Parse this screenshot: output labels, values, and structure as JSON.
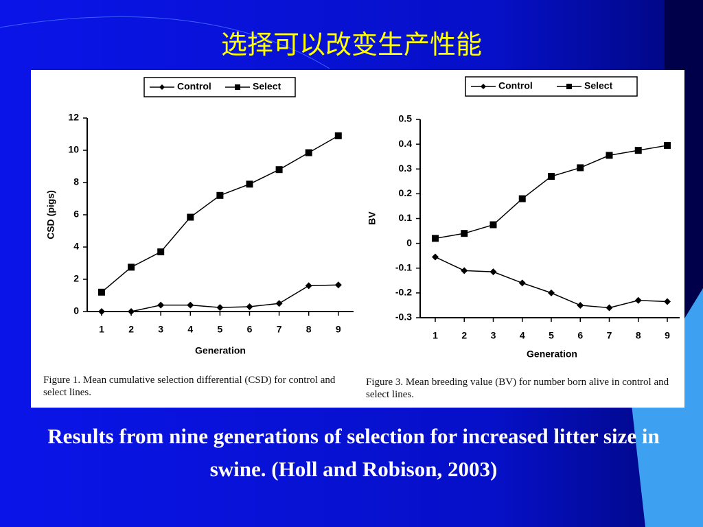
{
  "title": "选择可以改变生产性能",
  "caption": "Results from nine generations of selection for increased litter size in swine. (Holl and Robison, 2003)",
  "chart_data": [
    {
      "type": "line",
      "ylabel": "CSD (pigs)",
      "xlabel": "Generation",
      "caption": "Figure 1. Mean cumulative selection differential (CSD) for control and select lines.",
      "categories": [
        "1",
        "2",
        "3",
        "4",
        "5",
        "6",
        "7",
        "8",
        "9"
      ],
      "ylim": [
        0,
        12
      ],
      "yticks": [
        0,
        2,
        4,
        6,
        8,
        10,
        12
      ],
      "series": [
        {
          "name": "Control",
          "color": "#000000",
          "marker": "diamond",
          "values": [
            0,
            0,
            0.4,
            0.4,
            0.25,
            0.3,
            0.5,
            1.6,
            1.65
          ]
        },
        {
          "name": "Select",
          "color": "#000000",
          "marker": "square",
          "values": [
            1.2,
            2.75,
            3.7,
            5.85,
            7.2,
            7.9,
            8.8,
            9.85,
            10.9
          ]
        }
      ]
    },
    {
      "type": "line",
      "ylabel": "BV",
      "xlabel": "Generation",
      "caption": "Figure 3. Mean breeding value (BV) for number born alive in control and select lines.",
      "categories": [
        "1",
        "2",
        "3",
        "4",
        "5",
        "6",
        "7",
        "8",
        "9"
      ],
      "ylim": [
        -0.3,
        0.5
      ],
      "yticks": [
        -0.3,
        -0.2,
        -0.1,
        0,
        0.1,
        0.2,
        0.3,
        0.4,
        0.5
      ],
      "series": [
        {
          "name": "Control",
          "color": "#000000",
          "marker": "diamond",
          "values": [
            -0.055,
            -0.11,
            -0.115,
            -0.16,
            -0.2,
            -0.25,
            -0.26,
            -0.23,
            -0.235
          ]
        },
        {
          "name": "Select",
          "color": "#000000",
          "marker": "square",
          "values": [
            0.02,
            0.04,
            0.075,
            0.18,
            0.27,
            0.305,
            0.355,
            0.375,
            0.395
          ]
        }
      ]
    }
  ]
}
